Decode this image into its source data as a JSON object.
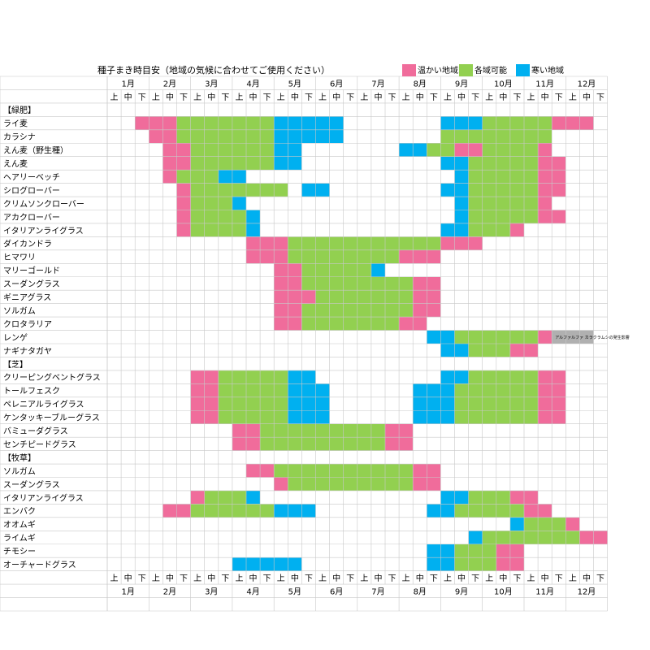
{
  "title": "種子まき時目安（地域の気候に合わせてご使用ください）",
  "legend": [
    {
      "key": "W",
      "label": "温かい地域",
      "color": "#f06c9b"
    },
    {
      "key": "A",
      "label": "各域可能",
      "color": "#92d050"
    },
    {
      "key": "C",
      "label": "寒い地域",
      "color": "#00b0f0"
    }
  ],
  "months": [
    "1月",
    "2月",
    "3月",
    "4月",
    "5月",
    "6月",
    "7月",
    "8月",
    "9月",
    "10月",
    "11月",
    "12月"
  ],
  "subperiods": [
    "上",
    "中",
    "下"
  ],
  "note": {
    "text": "アルファルファ カラクラムシの発生影響",
    "color": "#b0b0b0"
  },
  "chart_data": {
    "type": "heatmap",
    "title": "種子まき時目安（地域の気候に合わせてご使用ください）",
    "x_categories": "12 months × 上/中/下 (36 periods, 1月上 … 12月下)",
    "value_codes": {
      "W": "温かい地域",
      "A": "各域可能",
      "C": "寒い地域",
      "N": "アルファルファ カラクラムシの発生影響"
    },
    "rows": [
      {
        "label": "【緑肥】",
        "section": true
      },
      {
        "label": "ライ麦",
        "spans": [
          [
            2,
            4,
            "W"
          ],
          [
            5,
            11,
            "A"
          ],
          [
            12,
            14,
            "C"
          ],
          [
            15,
            16,
            "C"
          ],
          [
            24,
            26,
            "C"
          ],
          [
            27,
            31,
            "A"
          ],
          [
            32,
            34,
            "W"
          ]
        ]
      },
      {
        "label": "カラシナ",
        "spans": [
          [
            3,
            4,
            "W"
          ],
          [
            5,
            11,
            "A"
          ],
          [
            12,
            16,
            "C"
          ],
          [
            24,
            31,
            "A"
          ]
        ]
      },
      {
        "label": "えん麦（野生種）",
        "spans": [
          [
            4,
            5,
            "W"
          ],
          [
            6,
            11,
            "A"
          ],
          [
            12,
            13,
            "C"
          ],
          [
            21,
            22,
            "C"
          ],
          [
            23,
            24,
            "A"
          ],
          [
            25,
            26,
            "W"
          ],
          [
            27,
            30,
            "A"
          ],
          [
            31,
            31,
            "W"
          ]
        ]
      },
      {
        "label": "えん麦",
        "spans": [
          [
            4,
            5,
            "W"
          ],
          [
            6,
            11,
            "A"
          ],
          [
            12,
            13,
            "C"
          ],
          [
            24,
            25,
            "C"
          ],
          [
            26,
            30,
            "A"
          ],
          [
            31,
            32,
            "W"
          ]
        ]
      },
      {
        "label": "ヘアリーベッチ",
        "spans": [
          [
            4,
            4,
            "W"
          ],
          [
            5,
            7,
            "A"
          ],
          [
            8,
            9,
            "C"
          ],
          [
            25,
            25,
            "C"
          ],
          [
            26,
            30,
            "A"
          ],
          [
            31,
            32,
            "W"
          ]
        ]
      },
      {
        "label": "シログローバー",
        "spans": [
          [
            5,
            5,
            "W"
          ],
          [
            6,
            12,
            "A"
          ],
          [
            14,
            15,
            "C"
          ],
          [
            24,
            25,
            "C"
          ],
          [
            26,
            30,
            "A"
          ],
          [
            31,
            32,
            "W"
          ]
        ]
      },
      {
        "label": "クリムソンクローバー",
        "spans": [
          [
            5,
            5,
            "W"
          ],
          [
            6,
            8,
            "A"
          ],
          [
            9,
            9,
            "C"
          ],
          [
            25,
            25,
            "C"
          ],
          [
            26,
            30,
            "A"
          ],
          [
            31,
            31,
            "W"
          ]
        ]
      },
      {
        "label": "アカクローバー",
        "spans": [
          [
            5,
            5,
            "W"
          ],
          [
            6,
            9,
            "A"
          ],
          [
            10,
            10,
            "C"
          ],
          [
            25,
            25,
            "C"
          ],
          [
            26,
            30,
            "A"
          ],
          [
            31,
            32,
            "W"
          ]
        ]
      },
      {
        "label": "イタリアンライグラス",
        "spans": [
          [
            5,
            5,
            "W"
          ],
          [
            6,
            9,
            "A"
          ],
          [
            10,
            10,
            "C"
          ],
          [
            24,
            25,
            "C"
          ],
          [
            26,
            28,
            "A"
          ],
          [
            29,
            29,
            "W"
          ]
        ]
      },
      {
        "label": "ダイカンドラ",
        "spans": [
          [
            10,
            12,
            "W"
          ],
          [
            13,
            23,
            "A"
          ],
          [
            24,
            26,
            "W"
          ]
        ]
      },
      {
        "label": "ヒマワリ",
        "spans": [
          [
            10,
            12,
            "W"
          ],
          [
            13,
            20,
            "A"
          ],
          [
            21,
            23,
            "W"
          ]
        ]
      },
      {
        "label": "マリーゴールド",
        "spans": [
          [
            12,
            13,
            "W"
          ],
          [
            14,
            18,
            "A"
          ],
          [
            19,
            19,
            "C"
          ]
        ]
      },
      {
        "label": "スーダングラス",
        "spans": [
          [
            12,
            13,
            "W"
          ],
          [
            14,
            21,
            "A"
          ],
          [
            22,
            23,
            "W"
          ]
        ]
      },
      {
        "label": "ギニアグラス",
        "spans": [
          [
            12,
            14,
            "W"
          ],
          [
            15,
            21,
            "A"
          ],
          [
            22,
            23,
            "W"
          ]
        ]
      },
      {
        "label": "ソルガム",
        "spans": [
          [
            12,
            13,
            "W"
          ],
          [
            14,
            21,
            "A"
          ],
          [
            22,
            23,
            "W"
          ]
        ]
      },
      {
        "label": "クロタラリア",
        "spans": [
          [
            12,
            13,
            "W"
          ],
          [
            14,
            20,
            "A"
          ],
          [
            21,
            22,
            "W"
          ]
        ]
      },
      {
        "label": "レンゲ",
        "spans": [
          [
            23,
            24,
            "C"
          ],
          [
            25,
            30,
            "A"
          ],
          [
            31,
            31,
            "W"
          ],
          [
            32,
            34,
            "N"
          ]
        ],
        "note": true
      },
      {
        "label": "ナギナタガヤ",
        "spans": [
          [
            24,
            25,
            "C"
          ],
          [
            26,
            28,
            "A"
          ],
          [
            29,
            30,
            "W"
          ]
        ]
      },
      {
        "label": "【芝】",
        "section": true
      },
      {
        "label": "クリーピングベントグラス",
        "spans": [
          [
            6,
            7,
            "W"
          ],
          [
            8,
            12,
            "A"
          ],
          [
            13,
            14,
            "C"
          ],
          [
            24,
            25,
            "C"
          ],
          [
            26,
            30,
            "A"
          ],
          [
            31,
            32,
            "W"
          ]
        ]
      },
      {
        "label": "トールフェスク",
        "spans": [
          [
            6,
            7,
            "W"
          ],
          [
            8,
            12,
            "A"
          ],
          [
            13,
            13,
            "C"
          ],
          [
            14,
            15,
            "C"
          ],
          [
            22,
            23,
            "C"
          ],
          [
            24,
            24,
            "C"
          ],
          [
            25,
            30,
            "A"
          ],
          [
            31,
            32,
            "W"
          ]
        ]
      },
      {
        "label": "ペレニアルライグラス",
        "spans": [
          [
            6,
            7,
            "W"
          ],
          [
            8,
            12,
            "A"
          ],
          [
            13,
            15,
            "C"
          ],
          [
            22,
            24,
            "C"
          ],
          [
            25,
            30,
            "A"
          ],
          [
            31,
            32,
            "W"
          ]
        ]
      },
      {
        "label": "ケンタッキーブルーグラス",
        "spans": [
          [
            6,
            7,
            "W"
          ],
          [
            8,
            12,
            "A"
          ],
          [
            13,
            15,
            "C"
          ],
          [
            22,
            24,
            "C"
          ],
          [
            25,
            30,
            "A"
          ],
          [
            31,
            32,
            "W"
          ]
        ]
      },
      {
        "label": "バミューダグラス",
        "spans": [
          [
            9,
            10,
            "W"
          ],
          [
            11,
            19,
            "A"
          ],
          [
            20,
            21,
            "W"
          ]
        ]
      },
      {
        "label": "センチピードグラス",
        "spans": [
          [
            9,
            10,
            "W"
          ],
          [
            11,
            19,
            "A"
          ],
          [
            20,
            21,
            "W"
          ]
        ]
      },
      {
        "label": "【牧草】",
        "section": true
      },
      {
        "label": "ソルガム",
        "spans": [
          [
            10,
            11,
            "W"
          ],
          [
            12,
            21,
            "A"
          ],
          [
            22,
            23,
            "W"
          ]
        ]
      },
      {
        "label": "スーダングラス",
        "spans": [
          [
            12,
            12,
            "W"
          ],
          [
            13,
            21,
            "A"
          ],
          [
            22,
            23,
            "W"
          ]
        ]
      },
      {
        "label": "イタリアンライグラス",
        "spans": [
          [
            6,
            6,
            "W"
          ],
          [
            7,
            9,
            "A"
          ],
          [
            10,
            10,
            "C"
          ],
          [
            24,
            25,
            "C"
          ],
          [
            26,
            28,
            "A"
          ],
          [
            29,
            30,
            "W"
          ]
        ]
      },
      {
        "label": "エンバク",
        "spans": [
          [
            4,
            5,
            "W"
          ],
          [
            6,
            11,
            "A"
          ],
          [
            12,
            14,
            "C"
          ],
          [
            23,
            24,
            "C"
          ],
          [
            25,
            29,
            "A"
          ],
          [
            30,
            31,
            "W"
          ]
        ]
      },
      {
        "label": "オオムギ",
        "spans": [
          [
            29,
            29,
            "C"
          ],
          [
            30,
            32,
            "A"
          ],
          [
            33,
            33,
            "W"
          ]
        ]
      },
      {
        "label": "ライムギ",
        "spans": [
          [
            26,
            26,
            "C"
          ],
          [
            27,
            33,
            "A"
          ],
          [
            34,
            35,
            "W"
          ]
        ]
      },
      {
        "label": "チモシー",
        "spans": [
          [
            23,
            24,
            "C"
          ],
          [
            25,
            27,
            "A"
          ],
          [
            28,
            29,
            "W"
          ]
        ]
      },
      {
        "label": "オーチャードグラス",
        "spans": [
          [
            9,
            13,
            "C"
          ],
          [
            23,
            24,
            "C"
          ],
          [
            25,
            27,
            "A"
          ],
          [
            28,
            29,
            "W"
          ]
        ]
      }
    ]
  }
}
